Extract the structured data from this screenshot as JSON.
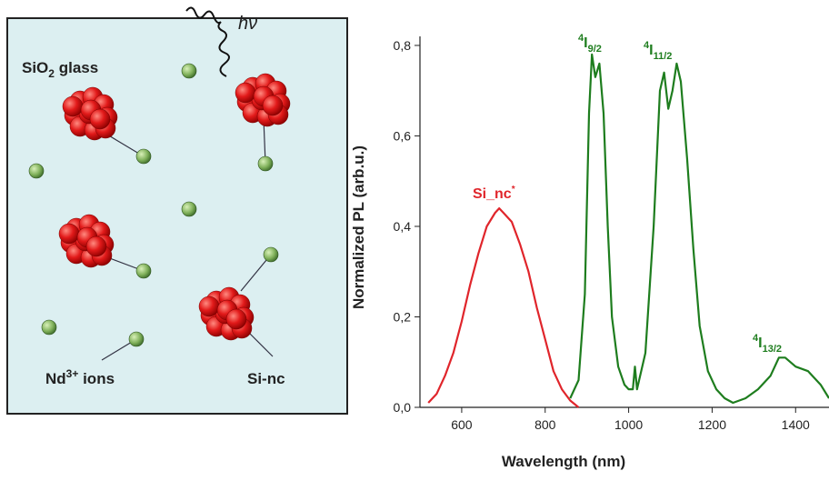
{
  "schematic": {
    "matrix_label": [
      "SiO",
      "2",
      " glass"
    ],
    "photon_label": "hν",
    "ion_label": [
      "Nd",
      "3+",
      " ions"
    ],
    "cluster_label": "Si-nc"
  },
  "chart_data": {
    "type": "line",
    "xlabel": "Wavelength (nm)",
    "ylabel": "Normalized PL (arb.u.)",
    "xlim": [
      500,
      1480
    ],
    "ylim": [
      0,
      0.82
    ],
    "xticks": [
      600,
      800,
      1000,
      1200,
      1400
    ],
    "yticks": [
      {
        "value": 0,
        "label": "0,0"
      },
      {
        "value": 0.2,
        "label": "0,2"
      },
      {
        "value": 0.4,
        "label": "0,4"
      },
      {
        "value": 0.6,
        "label": "0,6"
      },
      {
        "value": 0.8,
        "label": "0,8"
      }
    ],
    "series": [
      {
        "color": "#e0252b",
        "x": [
          520,
          540,
          560,
          580,
          600,
          620,
          640,
          660,
          680,
          690,
          700,
          720,
          740,
          760,
          780,
          800,
          820,
          840,
          860,
          880
        ],
        "values": [
          0.01,
          0.03,
          0.07,
          0.12,
          0.19,
          0.27,
          0.34,
          0.4,
          0.43,
          0.44,
          0.43,
          0.41,
          0.36,
          0.3,
          0.22,
          0.15,
          0.08,
          0.04,
          0.015,
          0
        ]
      },
      {
        "color": "#1e7d1e",
        "x": [
          860,
          880,
          895,
          905,
          912,
          920,
          930,
          940,
          950,
          960,
          975,
          990,
          1000,
          1010,
          1015,
          1020,
          1040,
          1060,
          1075,
          1085,
          1095,
          1105,
          1115,
          1125,
          1140,
          1155,
          1170,
          1190,
          1210,
          1230,
          1250,
          1280,
          1310,
          1340,
          1360,
          1375,
          1400,
          1430,
          1460,
          1480
        ],
        "values": [
          0.02,
          0.06,
          0.25,
          0.65,
          0.78,
          0.73,
          0.76,
          0.65,
          0.4,
          0.2,
          0.09,
          0.05,
          0.04,
          0.04,
          0.09,
          0.04,
          0.12,
          0.4,
          0.7,
          0.74,
          0.66,
          0.7,
          0.76,
          0.72,
          0.55,
          0.35,
          0.18,
          0.08,
          0.04,
          0.02,
          0.01,
          0.02,
          0.04,
          0.07,
          0.11,
          0.11,
          0.09,
          0.08,
          0.05,
          0.02
        ]
      }
    ],
    "annotations": [
      {
        "main": "Si_nc",
        "sup": "*"
      },
      {
        "pre": "4",
        "main": "I",
        "sub": "9/2"
      },
      {
        "pre": "4",
        "main": "I",
        "sub": "11/2"
      },
      {
        "pre": "4",
        "main": "I",
        "sub": "13/2"
      }
    ]
  }
}
